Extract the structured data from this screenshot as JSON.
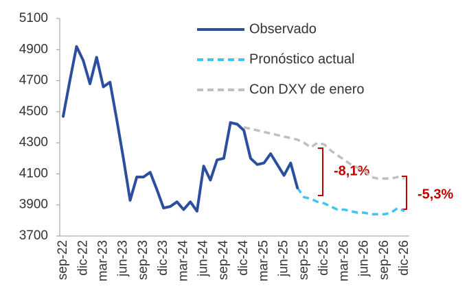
{
  "chart_data": {
    "type": "line",
    "categories": [
      "sep-22",
      null,
      null,
      "dic-22",
      null,
      null,
      "mar-23",
      null,
      null,
      "jun-23",
      null,
      null,
      "sep-23",
      null,
      null,
      "dic-23",
      null,
      null,
      "mar-24",
      null,
      null,
      "jun-24",
      null,
      null,
      "sep-24",
      null,
      null,
      "dic-24",
      null,
      null,
      "mar-25",
      null,
      null,
      "jun-25",
      null,
      null,
      "sep-25",
      null,
      null,
      "dic-25",
      null,
      null,
      "mar-26",
      null,
      null,
      "jun-26",
      null,
      null,
      "sep-26",
      null,
      null,
      "dic-26"
    ],
    "series": [
      {
        "name": "Observado",
        "color": "#2b4f9e",
        "dash": false,
        "values": [
          4470,
          4700,
          4920,
          4830,
          4680,
          4850,
          4660,
          4690,
          4450,
          4200,
          3930,
          4080,
          4080,
          4110,
          4000,
          3880,
          3890,
          3920,
          3870,
          3920,
          3860,
          4150,
          4060,
          4190,
          4200,
          4430,
          4420,
          4380,
          4200,
          4160,
          4170,
          4230,
          4160,
          4090,
          4170,
          4010,
          null,
          null,
          null,
          null,
          null,
          null,
          null,
          null,
          null,
          null,
          null,
          null,
          null,
          null,
          null,
          null
        ]
      },
      {
        "name": "Pronóstico actual",
        "color": "#3fc6f0",
        "dash": true,
        "values": [
          null,
          null,
          null,
          null,
          null,
          null,
          null,
          null,
          null,
          null,
          null,
          null,
          null,
          null,
          null,
          null,
          null,
          null,
          null,
          null,
          null,
          null,
          null,
          null,
          null,
          null,
          null,
          null,
          null,
          null,
          null,
          null,
          null,
          null,
          null,
          4010,
          3950,
          3940,
          3920,
          3910,
          3890,
          3870,
          3870,
          3860,
          3850,
          3850,
          3840,
          3840,
          3840,
          3850,
          3880,
          3860
        ]
      },
      {
        "name": "Con DXY de enero",
        "color": "#bfbfbf",
        "dash": true,
        "values": [
          null,
          null,
          null,
          null,
          null,
          null,
          null,
          null,
          null,
          null,
          null,
          null,
          null,
          null,
          null,
          null,
          null,
          null,
          null,
          null,
          null,
          null,
          null,
          null,
          null,
          null,
          null,
          4400,
          4390,
          4380,
          4370,
          4360,
          4350,
          4340,
          4330,
          4320,
          4300,
          4270,
          4300,
          4290,
          4250,
          4220,
          4190,
          4160,
          4140,
          4120,
          4080,
          4070,
          4070,
          4070,
          4080,
          4070
        ]
      }
    ],
    "annotations": [
      "-8,1%",
      "-5,3%"
    ],
    "ylim": [
      3700,
      5100
    ],
    "yticks": [
      3700,
      3900,
      4100,
      4300,
      4500,
      4700,
      4900,
      5100
    ],
    "grid": false
  }
}
